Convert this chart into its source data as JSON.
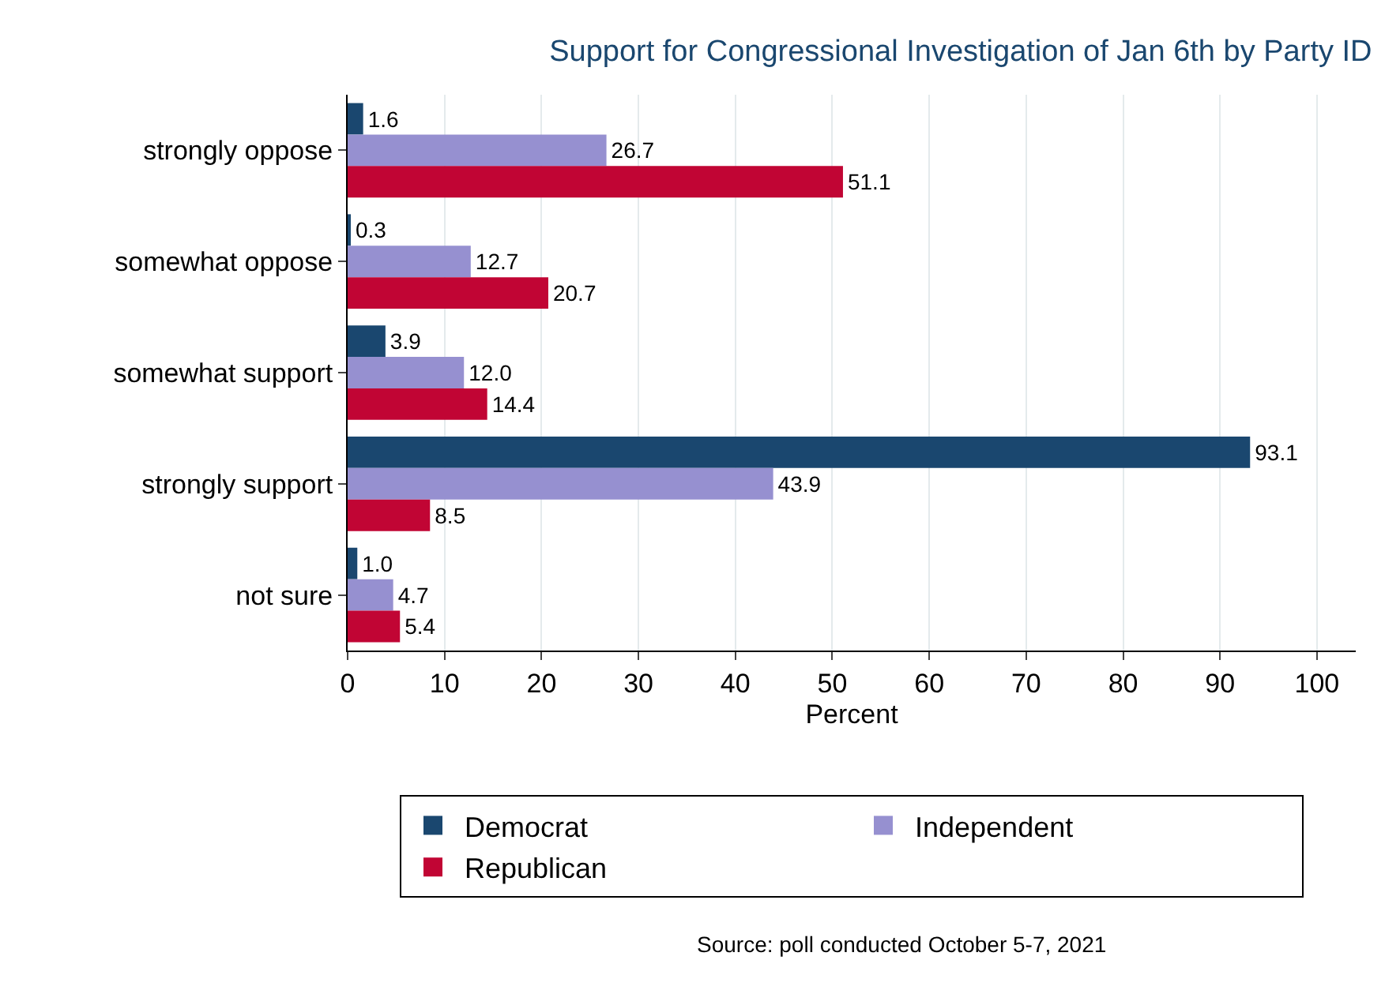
{
  "chart_data": {
    "type": "bar",
    "orientation": "horizontal",
    "title": "Support for Congressional Investigation of Jan 6th by Party ID",
    "xlabel": "Percent",
    "categories": [
      "strongly oppose",
      "somewhat oppose",
      "somewhat support",
      "strongly support",
      "not sure"
    ],
    "series": [
      {
        "name": "Democrat",
        "color": "#1a476f",
        "values": [
          1.6,
          0.3,
          3.9,
          93.1,
          1.0
        ],
        "value_labels": [
          "1.6",
          "0.3",
          "3.9",
          "93.1",
          "1.0"
        ]
      },
      {
        "name": "Independent",
        "color": "#9690d0",
        "values": [
          26.7,
          12.7,
          12.0,
          43.9,
          4.7
        ],
        "value_labels": [
          "26.7",
          "12.7",
          "12.0",
          "43.9",
          "4.7"
        ]
      },
      {
        "name": "Republican",
        "color": "#c10534",
        "values": [
          51.1,
          20.7,
          14.4,
          8.5,
          5.4
        ],
        "value_labels": [
          "51.1",
          "20.7",
          "14.4",
          "8.5",
          "5.4"
        ]
      }
    ],
    "xlim": [
      0,
      104
    ],
    "xticks": [
      0,
      10,
      20,
      30,
      40,
      50,
      60,
      70,
      80,
      90,
      100
    ],
    "grid": "x",
    "legend": "bottom",
    "annotations": [
      "Source: poll conducted October 5-7, 2021"
    ]
  }
}
